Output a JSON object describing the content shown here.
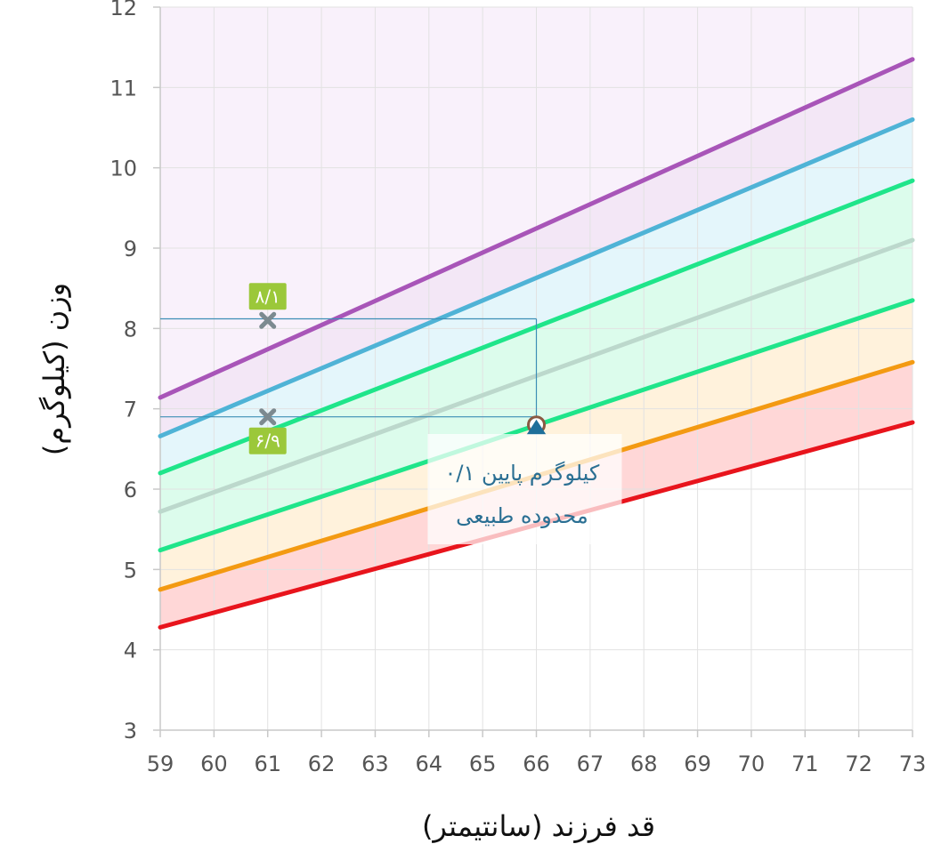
{
  "chart_data": {
    "type": "line",
    "title": "",
    "xlabel": "قد فرزند (سانتیمتر)",
    "ylabel": "وزن (کیلوگرم)",
    "xlim": [
      59,
      73
    ],
    "ylim": [
      3,
      12
    ],
    "x_ticks": [
      "59",
      "60",
      "61",
      "62",
      "63",
      "64",
      "65",
      "66",
      "67",
      "68",
      "69",
      "70",
      "71",
      "72",
      "73"
    ],
    "y_ticks": [
      "3",
      "4",
      "5",
      "6",
      "7",
      "8",
      "9",
      "10",
      "11",
      "12"
    ],
    "grid": true,
    "x": [
      59,
      73
    ],
    "series": [
      {
        "color": "#e8141c",
        "values": [
          4.28,
          6.83
        ]
      },
      {
        "color": "#f39a12",
        "values": [
          4.75,
          7.58
        ]
      },
      {
        "color": "#1fe58a",
        "values": [
          5.24,
          8.35
        ]
      },
      {
        "color": "#bcd8cc",
        "values": [
          5.72,
          9.1
        ]
      },
      {
        "color": "#1fe58a",
        "values": [
          6.2,
          9.84
        ]
      },
      {
        "color": "#4fb3d6",
        "values": [
          6.66,
          10.6
        ]
      },
      {
        "color": "#a855b8",
        "values": [
          7.14,
          11.35
        ]
      }
    ],
    "bands": [
      {
        "lower": 0,
        "upper": 1,
        "color": "#ffd0d0"
      },
      {
        "lower": 1,
        "upper": 2,
        "color": "#fff0d6"
      },
      {
        "lower": 2,
        "upper": 4,
        "color": "#d6fbe9"
      },
      {
        "lower": 4,
        "upper": 5,
        "color": "#dff4fa"
      },
      {
        "lower": 5,
        "upper": 6,
        "color": "#f1e3f5"
      }
    ],
    "markers": [
      {
        "shape": "cross",
        "x": 61,
        "y": 8.1,
        "label": "۸/۱",
        "label_side": "above"
      },
      {
        "shape": "cross",
        "x": 61,
        "y": 6.9,
        "label": "۶/۹",
        "label_side": "below"
      },
      {
        "shape": "circle-triangle",
        "x": 66,
        "y": 6.8
      }
    ],
    "ref_lines": [
      {
        "y": 8.12,
        "x_from": 59,
        "x_to": 66
      },
      {
        "y": 6.9,
        "x_from": 59,
        "x_to": 66
      },
      {
        "x": 66,
        "y_from": 6.9,
        "y_to": 8.12
      }
    ],
    "annotation": {
      "x": 65.8,
      "lines": [
        "۰/۱ کیلوگرم پایین",
        "محدوده طبیعی"
      ]
    },
    "colors": {
      "grid": "#e2e2e2",
      "ref_line": "#3d8fb6",
      "tag_bg": "#9bc83a",
      "marker": "#7c8a90",
      "point_ring": "#8a5a42",
      "point_triangle": "#1e6f9a",
      "upper_fill": "#f9f1fb"
    }
  }
}
